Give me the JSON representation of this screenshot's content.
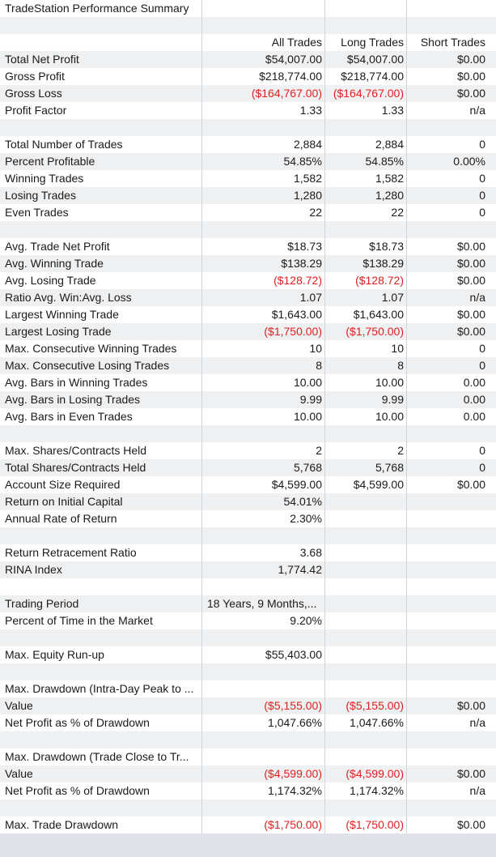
{
  "title": "TradeStation Performance Summary",
  "header": [
    "All Trades",
    "Long Trades",
    "Short Trades"
  ],
  "rows": [
    {
      "type": "title"
    },
    {
      "type": "blank"
    },
    {
      "type": "header"
    },
    {
      "label": "Total Net Profit",
      "values": [
        "$54,007.00",
        "$54,007.00",
        "$0.00"
      ]
    },
    {
      "label": "Gross Profit",
      "values": [
        "$218,774.00",
        "$218,774.00",
        "$0.00"
      ]
    },
    {
      "label": "Gross Loss",
      "values": [
        "($164,767.00)",
        "($164,767.00)",
        "$0.00"
      ]
    },
    {
      "label": "Profit Factor",
      "values": [
        "1.33",
        "1.33",
        "n/a"
      ]
    },
    {
      "type": "blank"
    },
    {
      "label": "Total Number of Trades",
      "values": [
        "2,884",
        "2,884",
        "0"
      ]
    },
    {
      "label": "Percent Profitable",
      "values": [
        "54.85%",
        "54.85%",
        "0.00%"
      ]
    },
    {
      "label": "Winning Trades",
      "values": [
        "1,582",
        "1,582",
        "0"
      ]
    },
    {
      "label": "Losing Trades",
      "values": [
        "1,280",
        "1,280",
        "0"
      ]
    },
    {
      "label": "Even Trades",
      "values": [
        "22",
        "22",
        "0"
      ]
    },
    {
      "type": "blank"
    },
    {
      "label": "Avg. Trade Net Profit",
      "values": [
        "$18.73",
        "$18.73",
        "$0.00"
      ]
    },
    {
      "label": "Avg. Winning Trade",
      "values": [
        "$138.29",
        "$138.29",
        "$0.00"
      ]
    },
    {
      "label": "Avg. Losing Trade",
      "values": [
        "($128.72)",
        "($128.72)",
        "$0.00"
      ]
    },
    {
      "label": "Ratio Avg. Win:Avg. Loss",
      "values": [
        "1.07",
        "1.07",
        "n/a"
      ]
    },
    {
      "label": "Largest Winning Trade",
      "values": [
        "$1,643.00",
        "$1,643.00",
        "$0.00"
      ]
    },
    {
      "label": "Largest Losing Trade",
      "values": [
        "($1,750.00)",
        "($1,750.00)",
        "$0.00"
      ]
    },
    {
      "label": "Max. Consecutive Winning Trades",
      "values": [
        "10",
        "10",
        "0"
      ]
    },
    {
      "label": "Max. Consecutive Losing Trades",
      "values": [
        "8",
        "8",
        "0"
      ]
    },
    {
      "label": "Avg. Bars in Winning Trades",
      "values": [
        "10.00",
        "10.00",
        "0.00"
      ]
    },
    {
      "label": "Avg. Bars in Losing Trades",
      "values": [
        "9.99",
        "9.99",
        "0.00"
      ]
    },
    {
      "label": "Avg. Bars in Even Trades",
      "values": [
        "10.00",
        "10.00",
        "0.00"
      ]
    },
    {
      "type": "blank"
    },
    {
      "label": "Max. Shares/Contracts Held",
      "values": [
        "2",
        "2",
        "0"
      ]
    },
    {
      "label": "Total Shares/Contracts Held",
      "values": [
        "5,768",
        "5,768",
        "0"
      ]
    },
    {
      "label": "Account Size Required",
      "values": [
        "$4,599.00",
        "$4,599.00",
        "$0.00"
      ]
    },
    {
      "label": "Return on Initial Capital",
      "values": [
        "54.01%",
        "",
        ""
      ]
    },
    {
      "label": "Annual Rate of Return",
      "values": [
        "2.30%",
        "",
        ""
      ]
    },
    {
      "type": "blank"
    },
    {
      "label": "Return Retracement Ratio",
      "values": [
        "3.68",
        "",
        ""
      ]
    },
    {
      "label": "RINA Index",
      "values": [
        "1,774.42",
        "",
        ""
      ]
    },
    {
      "type": "blank"
    },
    {
      "label": "Trading Period",
      "values": [
        "18 Years, 9 Months,...",
        "",
        ""
      ],
      "wide": true
    },
    {
      "label": "Percent of Time in the Market",
      "values": [
        "9.20%",
        "",
        ""
      ]
    },
    {
      "type": "blank"
    },
    {
      "label": "Max. Equity Run-up",
      "values": [
        "$55,403.00",
        "",
        ""
      ]
    },
    {
      "type": "blank"
    },
    {
      "label": "Max. Drawdown (Intra-Day Peak to ...",
      "values": [
        "",
        "",
        ""
      ]
    },
    {
      "label": "Value",
      "values": [
        "($5,155.00)",
        "($5,155.00)",
        "$0.00"
      ]
    },
    {
      "label": "Net Profit as % of Drawdown",
      "values": [
        "1,047.66%",
        "1,047.66%",
        "n/a"
      ]
    },
    {
      "type": "blank"
    },
    {
      "label": "Max. Drawdown (Trade Close to Tr...",
      "values": [
        "",
        "",
        ""
      ]
    },
    {
      "label": "Value",
      "values": [
        "($4,599.00)",
        "($4,599.00)",
        "$0.00"
      ]
    },
    {
      "label": "Net Profit as % of Drawdown",
      "values": [
        "1,174.32%",
        "1,174.32%",
        "n/a"
      ]
    },
    {
      "type": "blank"
    },
    {
      "label": "Max. Trade Drawdown",
      "values": [
        "($1,750.00)",
        "($1,750.00)",
        "$0.00"
      ]
    }
  ]
}
